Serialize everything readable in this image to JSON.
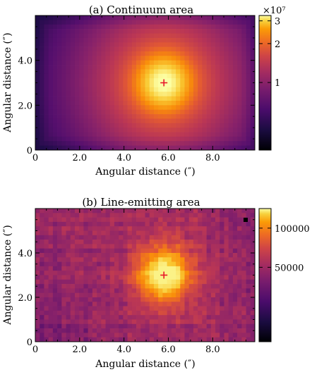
{
  "chart_data": [
    {
      "type": "heatmap",
      "title": "(a) Continuum area",
      "xlabel": "Angular distance (″)",
      "ylabel": "Angular distance (″)",
      "xlim": [
        0,
        9.9
      ],
      "ylim": [
        0,
        6.0
      ],
      "xticks": [
        "0",
        "2.0",
        "4.0",
        "6.0",
        "8.0"
      ],
      "yticks": [
        "0",
        "2.0",
        "4.0"
      ],
      "grid_shape": [
        30,
        50
      ],
      "peak_position": [
        5.8,
        3.0
      ],
      "marker": "+",
      "marker_color": "#e8162a",
      "colorbar": {
        "scale": "log",
        "multiplier": "×10⁷",
        "ticks": [
          "3",
          "2",
          "1"
        ],
        "tick_values": [
          30000000.0,
          20000000.0,
          10000000.0
        ],
        "range": [
          3000000.0,
          33000000.0
        ]
      },
      "colormap": "inferno"
    },
    {
      "type": "heatmap",
      "title": "(b) Line-emitting area",
      "xlabel": "Angular distance (″)",
      "ylabel": "Angular distance (″)",
      "xlim": [
        0,
        9.9
      ],
      "ylim": [
        0,
        6.0
      ],
      "xticks": [
        "0",
        "2.0",
        "4.0",
        "6.0",
        "8.0"
      ],
      "yticks": [
        "0",
        "2.0",
        "4.0"
      ],
      "grid_shape": [
        30,
        50
      ],
      "peak_position": [
        5.8,
        3.0
      ],
      "marker": "+",
      "marker_color": "#e8162a",
      "colorbar": {
        "scale": "linear",
        "ticks": [
          "100000",
          "50000"
        ],
        "tick_values": [
          100000,
          50000
        ],
        "range": [
          -45000,
          125000
        ]
      },
      "colormap": "inferno"
    }
  ]
}
